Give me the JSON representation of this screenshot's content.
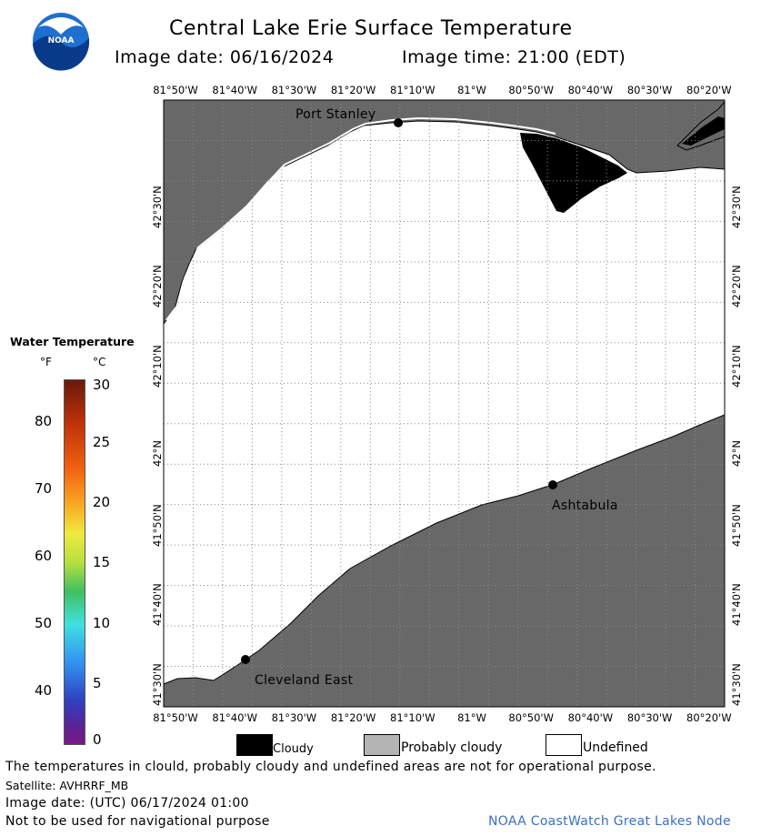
{
  "header": {
    "title": "Central Lake Erie Surface Temperature",
    "image_date_label": "Image date: 06/16/2024",
    "image_time_label": "Image time: 21:00 (EDT)"
  },
  "logo": {
    "text": "NOAA",
    "color": "#1e6fd0"
  },
  "map": {
    "longitude_ticks": [
      "81°50'W",
      "81°40'W",
      "81°30'W",
      "81°20'W",
      "81°10'W",
      "81°W",
      "80°50'W",
      "80°40'W",
      "80°30'W",
      "80°20'W"
    ],
    "latitude_ticks": [
      "42°30'N",
      "42°20'N",
      "42°10'N",
      "42°N",
      "41°50'N",
      "41°40'N",
      "41°30'N"
    ],
    "places": [
      {
        "name": "Port Stanley"
      },
      {
        "name": "Ashtabula"
      },
      {
        "name": "Cleveland East"
      }
    ],
    "colors": {
      "land": "#686868",
      "water_undefined": "#ffffff",
      "cloud": "#000000",
      "grid": "#808080"
    }
  },
  "temperature_scale": {
    "title": "Water Temperature",
    "unit_f": "°F",
    "unit_c": "°C",
    "fahrenheit_ticks": [
      "80",
      "70",
      "60",
      "50",
      "40"
    ],
    "celsius_ticks": [
      "30",
      "25",
      "20",
      "15",
      "10",
      "5",
      "0"
    ]
  },
  "legend": {
    "cloudy": "Cloudy",
    "probably_cloudy": "Probably cloudy",
    "undefined": "Undefined",
    "colors": {
      "cloudy": "#000000",
      "probably_cloudy": "#b4b4b4",
      "undefined": "#ffffff"
    }
  },
  "footer": {
    "disclaimer": "The temperatures in clould, probably cloudy and undefined areas are not for operational purpose.",
    "satellite": "Satellite: AVHRRF_MB",
    "utc_date": "Image date: (UTC) 06/17/2024  01:00",
    "navigation_note": "Not to be used for navigational purpose",
    "credit": "NOAA CoastWatch Great Lakes Node",
    "credit_color": "#3a6fc4"
  }
}
